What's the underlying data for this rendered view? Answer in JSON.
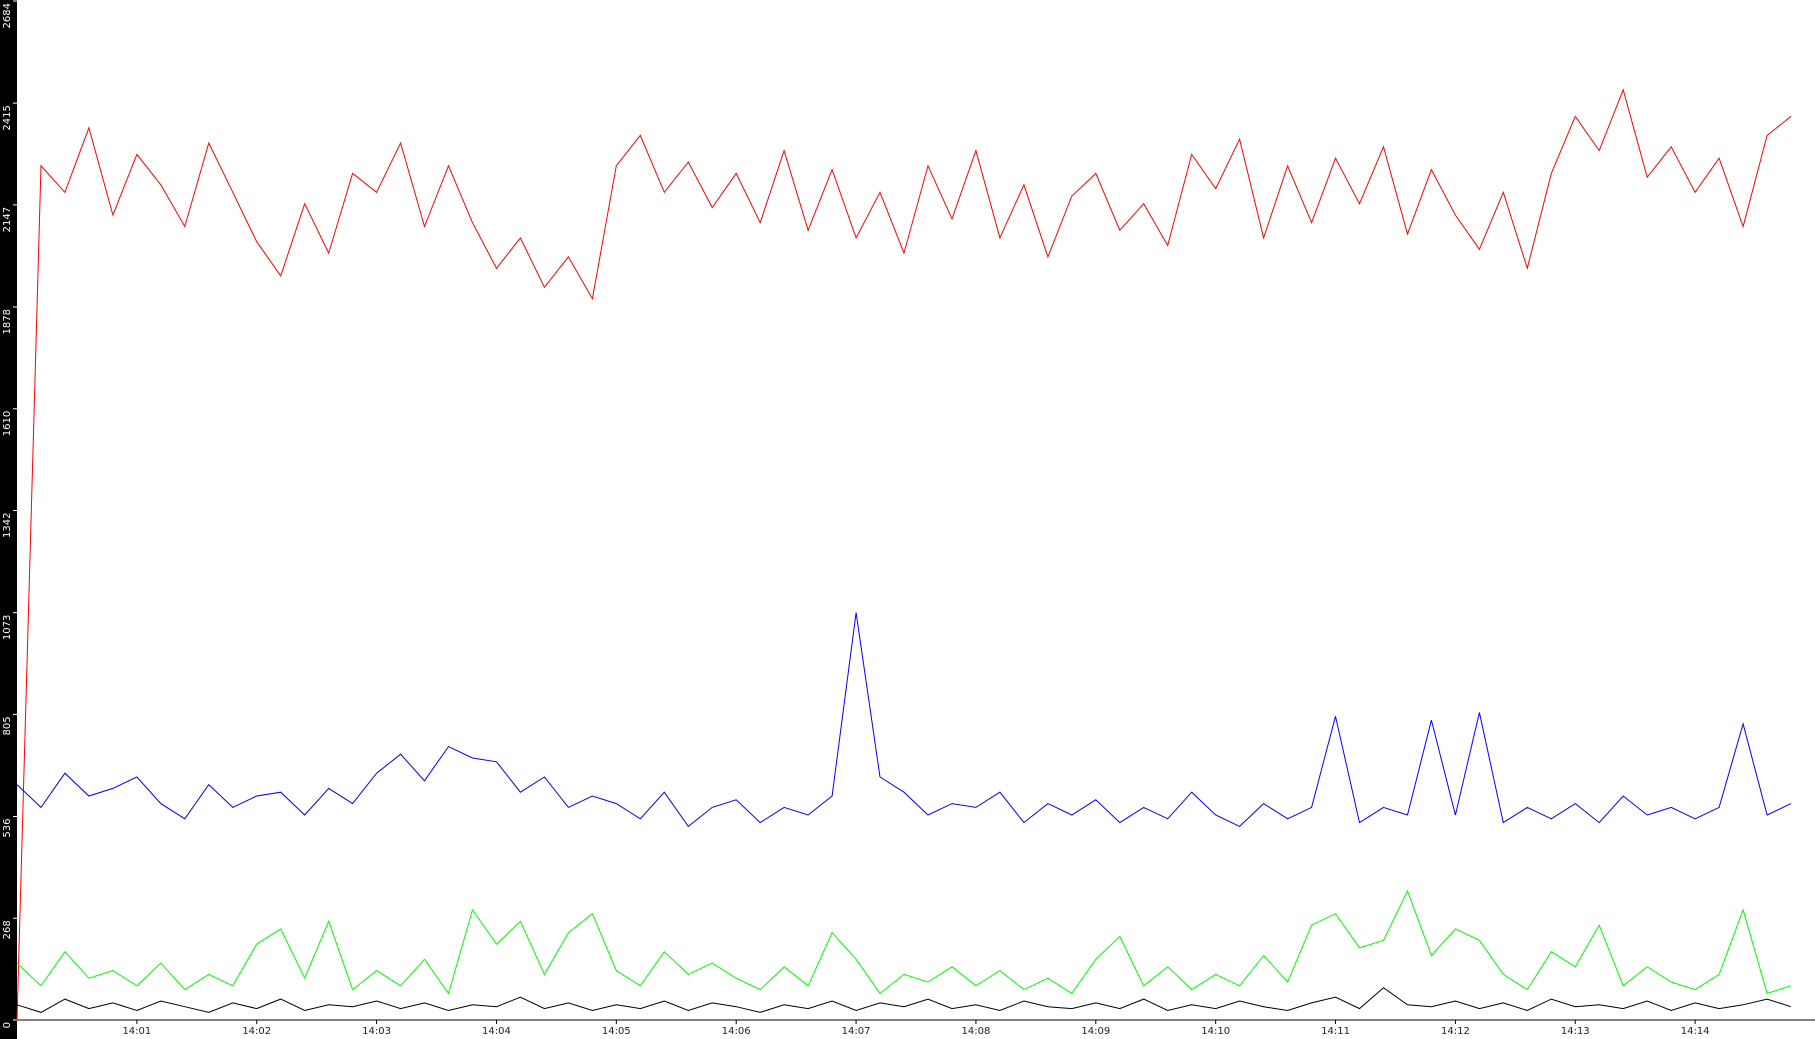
{
  "chart_data": {
    "type": "line",
    "x": [
      0,
      0.2,
      0.4,
      0.6,
      0.8,
      1,
      1.2,
      1.4,
      1.6,
      1.8,
      2,
      2.2,
      2.4,
      2.6,
      2.8,
      3,
      3.2,
      3.4,
      3.6,
      3.8,
      4,
      4.2,
      4.4,
      4.6,
      4.8,
      5,
      5.2,
      5.4,
      5.6,
      5.8,
      6,
      6.2,
      6.4,
      6.6,
      6.8,
      7,
      7.2,
      7.4,
      7.6,
      7.8,
      8,
      8.2,
      8.4,
      8.6,
      8.8,
      9,
      9.2,
      9.4,
      9.6,
      9.8,
      10,
      10.2,
      10.4,
      10.6,
      10.8,
      11,
      11.2,
      11.4,
      11.6,
      11.8,
      12,
      12.2,
      12.4,
      12.6,
      12.8,
      13,
      13.2,
      13.4,
      13.6,
      13.8,
      14,
      14.2,
      14.4,
      14.6,
      14.8
    ],
    "series": [
      {
        "color": "#ff0000",
        "values": [
          0,
          2250,
          2180,
          2350,
          2120,
          2280,
          2200,
          2090,
          2310,
          2180,
          2050,
          1960,
          2150,
          2020,
          2230,
          2180,
          2310,
          2090,
          2250,
          2100,
          1980,
          2060,
          1930,
          2010,
          1900,
          2250,
          2330,
          2180,
          2260,
          2140,
          2230,
          2100,
          2290,
          2080,
          2240,
          2060,
          2180,
          2020,
          2250,
          2110,
          2290,
          2060,
          2200,
          2010,
          2170,
          2230,
          2080,
          2150,
          2040,
          2280,
          2190,
          2320,
          2060,
          2250,
          2100,
          2270,
          2150,
          2300,
          2070,
          2240,
          2120,
          2030,
          2180,
          1980,
          2230,
          2380,
          2290,
          2450,
          2220,
          2300,
          2180,
          2270,
          2090,
          2330,
          2380
        ]
      },
      {
        "color": "#0000ff",
        "values": [
          620,
          560,
          650,
          590,
          610,
          640,
          570,
          530,
          620,
          560,
          590,
          600,
          540,
          610,
          570,
          650,
          700,
          630,
          720,
          690,
          680,
          600,
          640,
          560,
          590,
          570,
          530,
          600,
          510,
          560,
          580,
          520,
          560,
          540,
          590,
          1073,
          640,
          600,
          540,
          570,
          560,
          600,
          520,
          570,
          540,
          580,
          520,
          560,
          530,
          600,
          540,
          510,
          570,
          530,
          560,
          800,
          520,
          560,
          540,
          790,
          540,
          810,
          520,
          560,
          530,
          570,
          520,
          590,
          540,
          560,
          530,
          560,
          780,
          540,
          570
        ]
      },
      {
        "color": "#00ff00",
        "values": [
          150,
          90,
          180,
          110,
          130,
          90,
          150,
          80,
          120,
          90,
          200,
          240,
          110,
          260,
          80,
          130,
          90,
          160,
          70,
          290,
          200,
          260,
          120,
          230,
          280,
          130,
          90,
          180,
          120,
          150,
          110,
          80,
          140,
          90,
          230,
          160,
          70,
          120,
          100,
          140,
          90,
          130,
          80,
          110,
          70,
          160,
          220,
          90,
          140,
          80,
          120,
          90,
          170,
          100,
          250,
          280,
          190,
          210,
          340,
          170,
          240,
          210,
          120,
          80,
          180,
          140,
          250,
          90,
          140,
          100,
          80,
          120,
          290,
          70,
          90
        ]
      },
      {
        "color": "#000000",
        "values": [
          40,
          20,
          55,
          30,
          45,
          25,
          50,
          35,
          20,
          45,
          30,
          55,
          25,
          40,
          35,
          50,
          30,
          45,
          25,
          40,
          35,
          60,
          30,
          45,
          25,
          40,
          30,
          50,
          25,
          45,
          35,
          20,
          40,
          30,
          50,
          25,
          45,
          35,
          55,
          30,
          40,
          25,
          50,
          35,
          30,
          45,
          30,
          55,
          25,
          40,
          30,
          50,
          35,
          25,
          45,
          60,
          30,
          85,
          40,
          35,
          50,
          30,
          45,
          25,
          55,
          35,
          40,
          30,
          50,
          25,
          45,
          30,
          40,
          55,
          35
        ]
      }
    ],
    "xlim": [
      0,
      15
    ],
    "xticks": [
      {
        "value": 1,
        "label": "14:01"
      },
      {
        "value": 2,
        "label": "14:02"
      },
      {
        "value": 3,
        "label": "14:03"
      },
      {
        "value": 4,
        "label": "14:04"
      },
      {
        "value": 5,
        "label": "14:05"
      },
      {
        "value": 6,
        "label": "14:06"
      },
      {
        "value": 7,
        "label": "14:07"
      },
      {
        "value": 8,
        "label": "14:08"
      },
      {
        "value": 9,
        "label": "14:09"
      },
      {
        "value": 10,
        "label": "14:10"
      },
      {
        "value": 11,
        "label": "14:11"
      },
      {
        "value": 12,
        "label": "14:12"
      },
      {
        "value": 13,
        "label": "14:13"
      },
      {
        "value": 14,
        "label": "14:14"
      }
    ],
    "ylim": [
      0,
      2684
    ],
    "yticks": [
      0,
      268,
      536,
      805,
      1073,
      1342,
      1610,
      1878,
      2147,
      2415,
      2684
    ]
  }
}
